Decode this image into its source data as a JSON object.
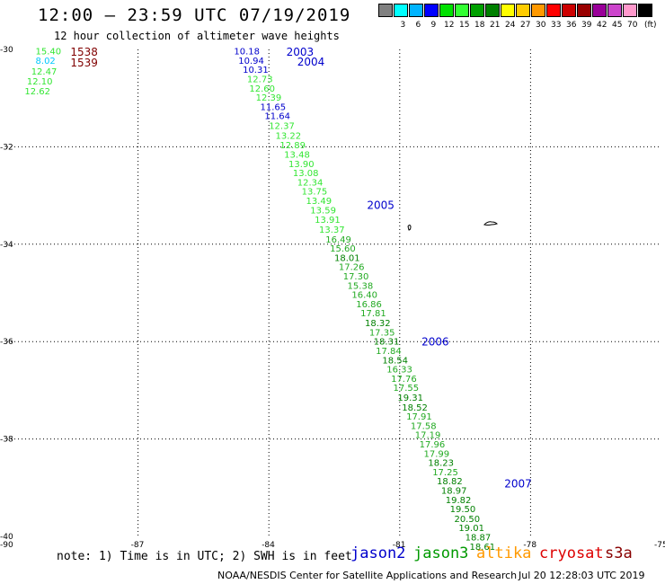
{
  "header": {
    "title": "12:00 – 23:59 UTC 07/19/2019",
    "subtitle": "12 hour collection of altimeter wave heights"
  },
  "legend": {
    "unit": "(ft)",
    "bins": [
      {
        "label": "",
        "color": "#808080"
      },
      {
        "label": "3",
        "color": "#00ffff"
      },
      {
        "label": "6",
        "color": "#00b4ff"
      },
      {
        "label": "9",
        "color": "#0000ff"
      },
      {
        "label": "12",
        "color": "#00e000"
      },
      {
        "label": "15",
        "color": "#33ff33"
      },
      {
        "label": "18",
        "color": "#00a000"
      },
      {
        "label": "21",
        "color": "#008000"
      },
      {
        "label": "24",
        "color": "#ffff00"
      },
      {
        "label": "27",
        "color": "#ffcc00"
      },
      {
        "label": "30",
        "color": "#ff9900"
      },
      {
        "label": "33",
        "color": "#ff0000"
      },
      {
        "label": "36",
        "color": "#cc0000"
      },
      {
        "label": "39",
        "color": "#990000"
      },
      {
        "label": "42",
        "color": "#990099"
      },
      {
        "label": "45",
        "color": "#cc44cc"
      },
      {
        "label": "70",
        "color": "#ff99cc"
      },
      {
        "label": "",
        "color": "#000000"
      }
    ]
  },
  "map": {
    "lon_range": [
      -90,
      -75
    ],
    "lat_range": [
      -40,
      -30
    ],
    "lon_ticks": [
      "-90",
      "-87",
      "-84",
      "-81",
      "-78",
      "-75"
    ],
    "lat_ticks": [
      "-30",
      "-32",
      "-34",
      "-36",
      "-38",
      "-40"
    ],
    "grid": "dotted",
    "colors": {
      "c_cyan": "#00c8ff",
      "c_lightgreen": "#33e633",
      "c_green": "#22aa22",
      "c_darkgreen": "#008000",
      "c_blue": "#0000cc",
      "c_darkred": "#800000"
    },
    "times": [
      {
        "text": "1538",
        "lon": -88.55,
        "lat": -30.04,
        "color": "c_darkred"
      },
      {
        "text": "1539",
        "lon": -88.55,
        "lat": -30.26,
        "color": "c_darkred"
      },
      {
        "text": "2003",
        "lon": -83.6,
        "lat": -30.04,
        "color": "c_blue"
      },
      {
        "text": "2004",
        "lon": -83.35,
        "lat": -30.24,
        "color": "c_blue"
      },
      {
        "text": "2005",
        "lon": -81.75,
        "lat": -33.18,
        "color": "c_blue"
      },
      {
        "text": "2006",
        "lon": -80.5,
        "lat": -35.99,
        "color": "c_blue"
      },
      {
        "text": "2007",
        "lon": -78.6,
        "lat": -38.9,
        "color": "c_blue"
      }
    ],
    "swh": [
      {
        "text": "15.40",
        "lon": -89.35,
        "lat": -30.03,
        "color": "c_lightgreen"
      },
      {
        "text": "8.02",
        "lon": -89.35,
        "lat": -30.22,
        "color": "c_cyan"
      },
      {
        "text": "12.47",
        "lon": -89.45,
        "lat": -30.44,
        "color": "c_lightgreen"
      },
      {
        "text": "12.10",
        "lon": -89.55,
        "lat": -30.65,
        "color": "c_lightgreen"
      },
      {
        "text": "12.62",
        "lon": -89.6,
        "lat": -30.85,
        "color": "c_lightgreen"
      },
      {
        "text": "10.18",
        "lon": -84.8,
        "lat": -30.03,
        "color": "c_blue"
      },
      {
        "text": "10.94",
        "lon": -84.7,
        "lat": -30.22,
        "color": "c_blue"
      },
      {
        "text": "10.31",
        "lon": -84.6,
        "lat": -30.41,
        "color": "c_blue"
      },
      {
        "text": "12.73",
        "lon": -84.5,
        "lat": -30.6,
        "color": "c_lightgreen"
      },
      {
        "text": "12.60",
        "lon": -84.45,
        "lat": -30.79,
        "color": "c_lightgreen"
      },
      {
        "text": "12.39",
        "lon": -84.3,
        "lat": -30.98,
        "color": "c_lightgreen"
      },
      {
        "text": "11.65",
        "lon": -84.2,
        "lat": -31.17,
        "color": "c_blue"
      },
      {
        "text": "11.64",
        "lon": -84.1,
        "lat": -31.36,
        "color": "c_blue"
      },
      {
        "text": "12.37",
        "lon": -84.0,
        "lat": -31.56,
        "color": "c_lightgreen"
      },
      {
        "text": "13.22",
        "lon": -83.85,
        "lat": -31.76,
        "color": "c_lightgreen"
      },
      {
        "text": "12.89",
        "lon": -83.75,
        "lat": -31.96,
        "color": "c_lightgreen"
      },
      {
        "text": "13.48",
        "lon": -83.65,
        "lat": -32.15,
        "color": "c_lightgreen"
      },
      {
        "text": "13.90",
        "lon": -83.55,
        "lat": -32.34,
        "color": "c_lightgreen"
      },
      {
        "text": "13.08",
        "lon": -83.45,
        "lat": -32.53,
        "color": "c_lightgreen"
      },
      {
        "text": "12.34",
        "lon": -83.35,
        "lat": -32.72,
        "color": "c_lightgreen"
      },
      {
        "text": "13.75",
        "lon": -83.25,
        "lat": -32.91,
        "color": "c_lightgreen"
      },
      {
        "text": "13.49",
        "lon": -83.15,
        "lat": -33.1,
        "color": "c_lightgreen"
      },
      {
        "text": "13.59",
        "lon": -83.05,
        "lat": -33.29,
        "color": "c_lightgreen"
      },
      {
        "text": "13.91",
        "lon": -82.95,
        "lat": -33.49,
        "color": "c_lightgreen"
      },
      {
        "text": "13.37",
        "lon": -82.85,
        "lat": -33.69,
        "color": "c_lightgreen"
      },
      {
        "text": "16.49",
        "lon": -82.7,
        "lat": -33.89,
        "color": "c_green"
      },
      {
        "text": "15.60",
        "lon": -82.6,
        "lat": -34.08,
        "color": "c_green"
      },
      {
        "text": "18.01",
        "lon": -82.5,
        "lat": -34.27,
        "color": "c_darkgreen"
      },
      {
        "text": "17.26",
        "lon": -82.4,
        "lat": -34.46,
        "color": "c_green"
      },
      {
        "text": "17.30",
        "lon": -82.3,
        "lat": -34.65,
        "color": "c_green"
      },
      {
        "text": "15.38",
        "lon": -82.2,
        "lat": -34.84,
        "color": "c_green"
      },
      {
        "text": "16.40",
        "lon": -82.1,
        "lat": -35.03,
        "color": "c_green"
      },
      {
        "text": "16.86",
        "lon": -82.0,
        "lat": -35.22,
        "color": "c_green"
      },
      {
        "text": "17.81",
        "lon": -81.9,
        "lat": -35.41,
        "color": "c_green"
      },
      {
        "text": "18.32",
        "lon": -81.8,
        "lat": -35.61,
        "color": "c_darkgreen"
      },
      {
        "text": "17.35",
        "lon": -81.7,
        "lat": -35.8,
        "color": "c_green"
      },
      {
        "text": "18.31",
        "lon": -81.6,
        "lat": -35.99,
        "color": "c_darkgreen"
      },
      {
        "text": "17.84",
        "lon": -81.55,
        "lat": -36.18,
        "color": "c_green"
      },
      {
        "text": "18.54",
        "lon": -81.4,
        "lat": -36.37,
        "color": "c_darkgreen"
      },
      {
        "text": "16.33",
        "lon": -81.3,
        "lat": -36.56,
        "color": "c_green"
      },
      {
        "text": "17.76",
        "lon": -81.2,
        "lat": -36.75,
        "color": "c_green"
      },
      {
        "text": "17.55",
        "lon": -81.15,
        "lat": -36.94,
        "color": "c_green"
      },
      {
        "text": "19.31",
        "lon": -81.05,
        "lat": -37.14,
        "color": "c_darkgreen"
      },
      {
        "text": "18.52",
        "lon": -80.95,
        "lat": -37.34,
        "color": "c_darkgreen"
      },
      {
        "text": "17.91",
        "lon": -80.85,
        "lat": -37.53,
        "color": "c_green"
      },
      {
        "text": "17.58",
        "lon": -80.75,
        "lat": -37.72,
        "color": "c_green"
      },
      {
        "text": "17.19",
        "lon": -80.65,
        "lat": -37.91,
        "color": "c_green"
      },
      {
        "text": "17.96",
        "lon": -80.55,
        "lat": -38.1,
        "color": "c_green"
      },
      {
        "text": "17.99",
        "lon": -80.45,
        "lat": -38.29,
        "color": "c_green"
      },
      {
        "text": "18.23",
        "lon": -80.35,
        "lat": -38.48,
        "color": "c_darkgreen"
      },
      {
        "text": "17.25",
        "lon": -80.25,
        "lat": -38.67,
        "color": "c_green"
      },
      {
        "text": "18.82",
        "lon": -80.15,
        "lat": -38.86,
        "color": "c_darkgreen"
      },
      {
        "text": "18.97",
        "lon": -80.05,
        "lat": -39.05,
        "color": "c_darkgreen"
      },
      {
        "text": "19.82",
        "lon": -79.95,
        "lat": -39.24,
        "color": "c_darkgreen"
      },
      {
        "text": "19.50",
        "lon": -79.85,
        "lat": -39.43,
        "color": "c_darkgreen"
      },
      {
        "text": "20.50",
        "lon": -79.75,
        "lat": -39.63,
        "color": "c_darkgreen"
      },
      {
        "text": "19.01",
        "lon": -79.65,
        "lat": -39.82,
        "color": "c_darkgreen"
      },
      {
        "text": "18.87",
        "lon": -79.5,
        "lat": -40.01,
        "color": "c_darkgreen"
      },
      {
        "text": "18.61",
        "lon": -79.4,
        "lat": -40.2,
        "color": "c_darkgreen"
      }
    ]
  },
  "footer": {
    "note": "note: 1) Time is in UTC; 2) SWH is in feet",
    "satellites": [
      {
        "name": "jason2",
        "color": "#0000cc"
      },
      {
        "name": "jason3",
        "color": "#009900"
      },
      {
        "name": "altika",
        "color": "#ff9900"
      },
      {
        "name": "cryosat",
        "color": "#dd0000"
      },
      {
        "name": "s3a",
        "color": "#880000"
      }
    ],
    "credit": "NOAA/NESDIS Center for Satellite Applications and Research",
    "generated": "Jul 20 12:28:03 UTC 2019"
  }
}
